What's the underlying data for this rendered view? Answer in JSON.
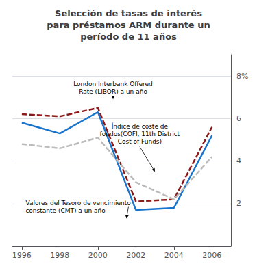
{
  "chart_data": {
    "type": "line",
    "title": "Selección de tasas de interés\npara préstamos ARM durante un\nperíodo de 11 años",
    "x": [
      1996,
      1998,
      2000,
      2002,
      2004,
      2006
    ],
    "series": [
      {
        "color": "#1874CD",
        "line_style": "solid",
        "values": [
          5.8,
          5.3,
          6.3,
          1.7,
          1.8,
          5.2
        ]
      },
      {
        "color": "#8B1A1A",
        "line_style": "dashed",
        "values": [
          6.2,
          6.1,
          6.5,
          2.1,
          2.2,
          5.6
        ]
      },
      {
        "color": "#BBBBBB",
        "line_style": "dashed",
        "values": [
          4.8,
          4.6,
          5.1,
          3.0,
          2.2,
          4.2
        ]
      }
    ],
    "xlim": [
      1995.5,
      2007.0
    ],
    "xticks": [
      1996,
      1998,
      2000,
      2002,
      2004,
      2006
    ],
    "ylim": [
      0,
      9
    ],
    "yticks": [
      2,
      4,
      6,
      {
        "value": 8,
        "label": "8%"
      }
    ],
    "grid": true,
    "annotations": [
      {
        "text": "London Interbank Offered\nRate (LIBOR) a un año",
        "xy": [
          2000.8,
          6.9
        ],
        "xytext": [
          2000.8,
          7.8
        ],
        "align": "center"
      },
      {
        "text": "Índice de coste de\nfondos(COFI, 11th District\nCost of Funds)",
        "xy": [
          2003.0,
          3.5
        ],
        "xytext": [
          2002.2,
          5.8
        ],
        "align": "center"
      },
      {
        "text": "Valores del Tesoro de vencimiento\nconstante (CMT) a un año",
        "xy": [
          2001.5,
          1.3
        ],
        "xytext": [
          1996.2,
          2.2
        ],
        "align": "left"
      }
    ]
  }
}
